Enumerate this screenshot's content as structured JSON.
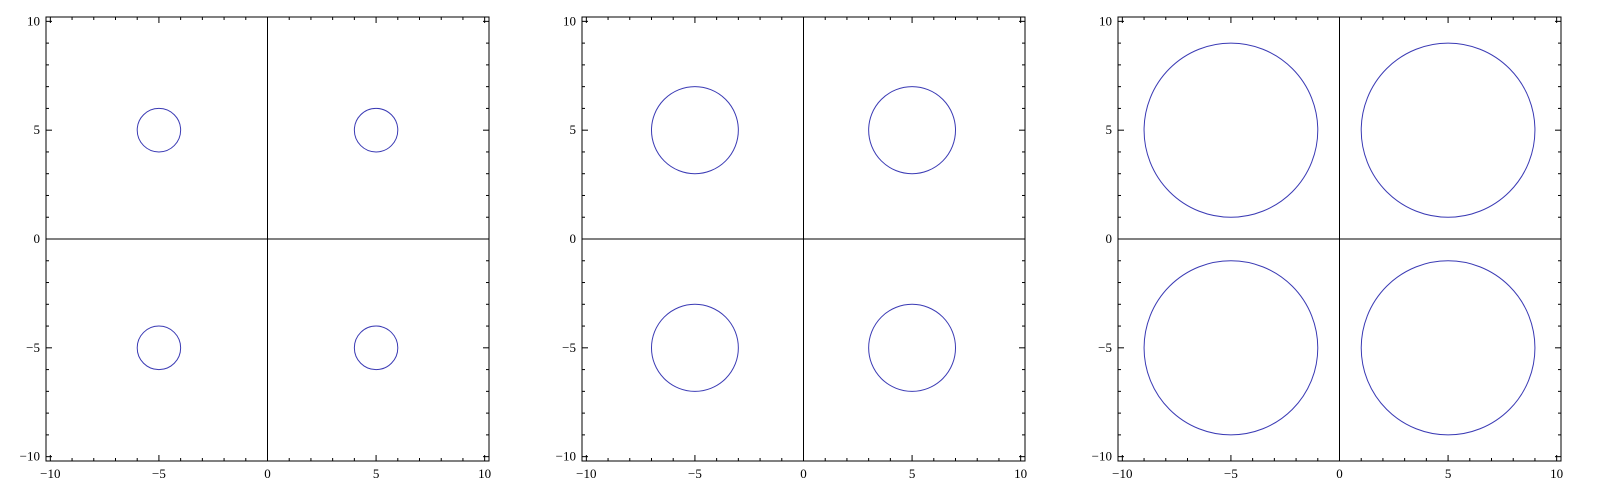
{
  "chart_data": [
    {
      "type": "contour",
      "xlim": [
        -10.2,
        10.2
      ],
      "ylim": [
        -10.2,
        10.2
      ],
      "xticks": [
        -10,
        -5,
        0,
        5,
        10
      ],
      "yticks": [
        -10,
        -5,
        0,
        5,
        10
      ],
      "xtick_labels": [
        "−10",
        "−5",
        "0",
        "5",
        "10"
      ],
      "ytick_labels": [
        "−10",
        "−5",
        "0",
        "5",
        "10"
      ],
      "axes_lines": true,
      "grid": false,
      "circles": [
        {
          "cx": -5,
          "cy": 5,
          "r": 1
        },
        {
          "cx": 5,
          "cy": 5,
          "r": 1
        },
        {
          "cx": -5,
          "cy": -5,
          "r": 1
        },
        {
          "cx": 5,
          "cy": -5,
          "r": 1
        }
      ],
      "color": "#3a3ab4"
    },
    {
      "type": "contour",
      "xlim": [
        -10.2,
        10.2
      ],
      "ylim": [
        -10.2,
        10.2
      ],
      "xticks": [
        -10,
        -5,
        0,
        5,
        10
      ],
      "yticks": [
        -10,
        -5,
        0,
        5,
        10
      ],
      "xtick_labels": [
        "−10",
        "−5",
        "0",
        "5",
        "10"
      ],
      "ytick_labels": [
        "−10",
        "−5",
        "0",
        "5",
        "10"
      ],
      "axes_lines": true,
      "grid": false,
      "circles": [
        {
          "cx": -5,
          "cy": 5,
          "r": 2
        },
        {
          "cx": 5,
          "cy": 5,
          "r": 2
        },
        {
          "cx": -5,
          "cy": -5,
          "r": 2
        },
        {
          "cx": 5,
          "cy": -5,
          "r": 2
        }
      ],
      "color": "#3a3ab4"
    },
    {
      "type": "contour",
      "xlim": [
        -10.2,
        10.2
      ],
      "ylim": [
        -10.2,
        10.2
      ],
      "xticks": [
        -10,
        -5,
        0,
        5,
        10
      ],
      "yticks": [
        -10,
        -5,
        0,
        5,
        10
      ],
      "xtick_labels": [
        "−10",
        "−5",
        "0",
        "5",
        "10"
      ],
      "ytick_labels": [
        "−10",
        "−5",
        "0",
        "5",
        "10"
      ],
      "axes_lines": true,
      "grid": false,
      "circles": [
        {
          "cx": -5,
          "cy": 5,
          "r": 4
        },
        {
          "cx": 5,
          "cy": 5,
          "r": 4
        },
        {
          "cx": -5,
          "cy": -5,
          "r": 4
        },
        {
          "cx": 5,
          "cy": -5,
          "r": 4
        }
      ],
      "color": "#3a3ab4"
    }
  ]
}
